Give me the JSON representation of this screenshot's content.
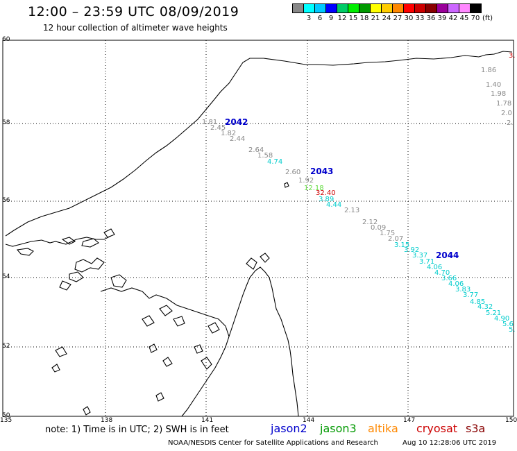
{
  "header": {
    "title": "12:00  –  23:59 UTC 08/09/2019",
    "subtitle": "12 hour collection of altimeter wave heights"
  },
  "legend": {
    "unit": "(ft)",
    "colors": [
      "#888888",
      "#00ffff",
      "#00c8ff",
      "#0000ff",
      "#00cc66",
      "#00ee00",
      "#009900",
      "#ffff00",
      "#ffcc00",
      "#ff8800",
      "#ff0000",
      "#cc0000",
      "#880000",
      "#990099",
      "#cc66ff",
      "#ff88ff",
      "#000000"
    ],
    "labels": [
      "",
      "3",
      "6",
      "9",
      "12",
      "15",
      "18",
      "21",
      "24",
      "27",
      "30",
      "33",
      "36",
      "39",
      "42",
      "45",
      "70"
    ]
  },
  "axes": {
    "lon_labels": [
      "135",
      "138",
      "141",
      "144",
      "147",
      "150"
    ],
    "lat_labels": [
      "60",
      "58",
      "56",
      "54",
      "52",
      "50"
    ]
  },
  "passes": [
    {
      "id": "2042",
      "color": "#0000cc"
    },
    {
      "id": "2043",
      "color": "#0000cc"
    },
    {
      "id": "2044",
      "color": "#0000cc"
    }
  ],
  "wave_heights": [
    {
      "v": "1.86",
      "c": "#888888"
    },
    {
      "v": "1.40",
      "c": "#888888"
    },
    {
      "v": "1.98",
      "c": "#888888"
    },
    {
      "v": "1.78",
      "c": "#888888"
    },
    {
      "v": "2.0",
      "c": "#888888"
    },
    {
      "v": "2.",
      "c": "#888888"
    },
    {
      "v": "1.81",
      "c": "#888888"
    },
    {
      "v": "2.45",
      "c": "#888888"
    },
    {
      "v": "1.82",
      "c": "#888888"
    },
    {
      "v": "2.44",
      "c": "#888888"
    },
    {
      "v": "2.64",
      "c": "#888888"
    },
    {
      "v": "1.58",
      "c": "#888888"
    },
    {
      "v": "4.74",
      "c": "#00cccc"
    },
    {
      "v": "2.60",
      "c": "#888888"
    },
    {
      "v": "1.92",
      "c": "#888888"
    },
    {
      "v": "12.18",
      "c": "#66dd44"
    },
    {
      "v": "32.40",
      "c": "#cc0000"
    },
    {
      "v": "3.89",
      "c": "#00cccc"
    },
    {
      "v": "4.44",
      "c": "#00cccc"
    },
    {
      "v": "2.13",
      "c": "#888888"
    },
    {
      "v": "2.12",
      "c": "#888888"
    },
    {
      "v": "0.09",
      "c": "#888888"
    },
    {
      "v": "1.75",
      "c": "#888888"
    },
    {
      "v": "2.07",
      "c": "#888888"
    },
    {
      "v": "3.15",
      "c": "#00cccc"
    },
    {
      "v": "3.92",
      "c": "#00cccc"
    },
    {
      "v": "3.37",
      "c": "#00cccc"
    },
    {
      "v": "3.71",
      "c": "#00cccc"
    },
    {
      "v": "4.06",
      "c": "#00cccc"
    },
    {
      "v": "4.70",
      "c": "#00cccc"
    },
    {
      "v": "3.66",
      "c": "#00cccc"
    },
    {
      "v": "4.06",
      "c": "#00cccc"
    },
    {
      "v": "3.83",
      "c": "#00cccc"
    },
    {
      "v": "3.77",
      "c": "#00cccc"
    },
    {
      "v": "4.85",
      "c": "#00cccc"
    },
    {
      "v": "4.32",
      "c": "#00cccc"
    },
    {
      "v": "5.21",
      "c": "#00cccc"
    },
    {
      "v": "4.90",
      "c": "#00cccc"
    },
    {
      "v": "5.6",
      "c": "#00cccc"
    },
    {
      "v": "5.",
      "c": "#00cccc"
    },
    {
      "v": "3.",
      "c": "#cc0000"
    }
  ],
  "footer": {
    "note": "note:  1) Time is in UTC;  2) SWH is in feet",
    "satellites": [
      {
        "name": "jason2",
        "color": "#0000cc"
      },
      {
        "name": "jason3",
        "color": "#009900"
      },
      {
        "name": "altika",
        "color": "#ff8800"
      },
      {
        "name": "cryosat",
        "color": "#cc0000"
      },
      {
        "name": "s3a",
        "color": "#880000"
      }
    ],
    "credit": "NOAA/NESDIS Center for Satellite Applications and Research",
    "timestamp": "Aug 10 12:28:06 UTC 2019"
  }
}
